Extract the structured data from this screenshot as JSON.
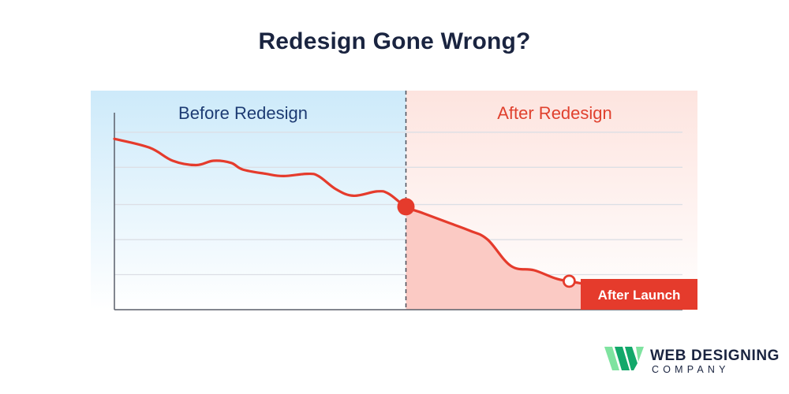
{
  "page": {
    "title": "Redesign Gone Wrong?"
  },
  "logo": {
    "main_text": "WEB DESIGNING",
    "sub_text": "COMPANY",
    "icon": "w-monogram-logo-icon",
    "colors": {
      "green_light": "#7fe3a0",
      "green_dark": "#12a86a",
      "text": "#1a2440"
    }
  },
  "chart_data": {
    "type": "line",
    "title": "",
    "xlabel": "",
    "ylabel": "",
    "xlim": [
      0,
      100
    ],
    "ylim": [
      0,
      100
    ],
    "grid": true,
    "regions": [
      {
        "name": "before",
        "label": "Before Redesign",
        "x_range": [
          0,
          50
        ],
        "color": "#1d3b73",
        "bg": "#d6effb"
      },
      {
        "name": "after",
        "label": "After Redesign",
        "x_range": [
          50,
          100
        ],
        "color": "#e0412e",
        "bg": "#fdeae6"
      }
    ],
    "redesign_x": 50,
    "series": [
      {
        "values": [
          [
            0,
            78
          ],
          [
            6,
            74
          ],
          [
            10,
            68
          ],
          [
            14,
            66
          ],
          [
            17,
            68
          ],
          [
            20,
            67
          ],
          [
            22,
            64
          ],
          [
            26,
            62
          ],
          [
            29,
            61
          ],
          [
            33,
            62
          ],
          [
            35,
            61
          ],
          [
            38,
            55
          ],
          [
            41,
            52
          ],
          [
            45,
            54
          ],
          [
            47,
            53
          ],
          [
            50,
            47
          ],
          [
            53,
            44
          ],
          [
            57,
            40
          ],
          [
            61,
            36
          ],
          [
            64,
            32
          ],
          [
            68,
            20
          ],
          [
            72,
            18
          ],
          [
            76,
            14
          ],
          [
            80,
            12
          ],
          [
            85,
            9
          ]
        ],
        "color": "#e53b2c"
      }
    ],
    "markers": [
      {
        "x": 50,
        "y": 47,
        "style": "filled"
      },
      {
        "x": 78,
        "y": 13,
        "style": "hollow"
      }
    ],
    "annotation": {
      "text": "After Launch",
      "x": 90,
      "y": 8,
      "bg": "#e53b2c",
      "color": "#ffffff"
    },
    "colors": {
      "line": "#e53b2c",
      "fill_after": "#fbcac4",
      "grid": "#dcdfe5",
      "axis": "#5a5f6a",
      "divider": "#4a4f5a"
    }
  }
}
